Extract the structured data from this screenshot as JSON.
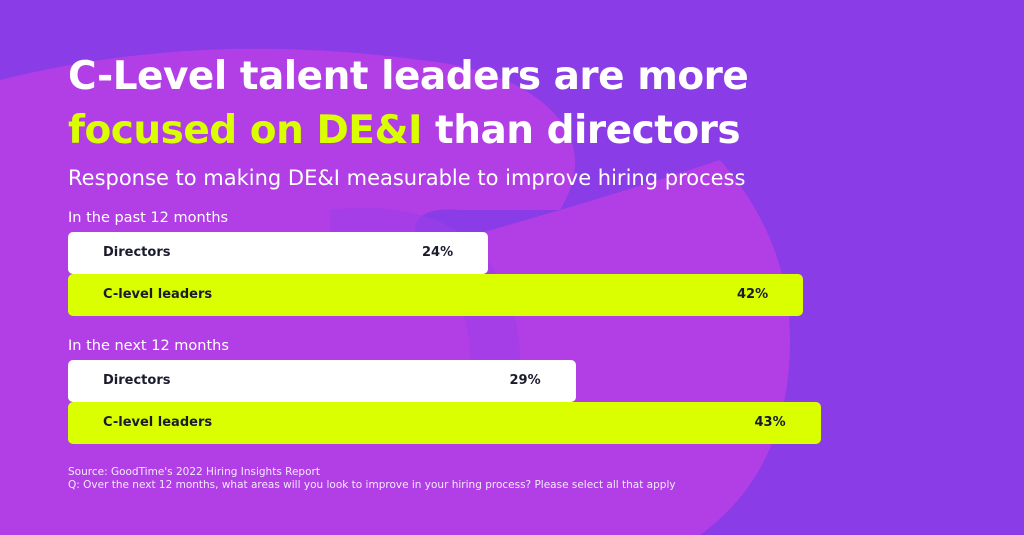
{
  "title": {
    "line1": "C-Level talent leaders are more",
    "highlight": "focused on DE&I",
    "line2_rest": " than directors"
  },
  "subtitle": "Response to making DE&I measurable to improve hiring process",
  "colors": {
    "background": "#8a3ce6",
    "shape": "#b23fe6",
    "directors_bar": "#ffffff",
    "clevel_bar": "#d9ff00",
    "highlight_text": "#d9ff00"
  },
  "chart_data": {
    "type": "bar",
    "orientation": "horizontal",
    "xlim": [
      0,
      50
    ],
    "groups": [
      {
        "label": "In the past 12 months",
        "bars": [
          {
            "name": "Directors",
            "value": 24,
            "value_label": "24%",
            "color": "#ffffff"
          },
          {
            "name": "C-level leaders",
            "value": 42,
            "value_label": "42%",
            "color": "#d9ff00"
          }
        ]
      },
      {
        "label": "In the next 12 months",
        "bars": [
          {
            "name": "Directors",
            "value": 29,
            "value_label": "29%",
            "color": "#ffffff"
          },
          {
            "name": "C-level leaders",
            "value": 43,
            "value_label": "43%",
            "color": "#d9ff00"
          }
        ]
      }
    ]
  },
  "footer": {
    "source": "Source: GoodTime's 2022 Hiring Insights Report",
    "question": "Q: Over the next 12 months, what areas will you look to improve in your hiring process? Please select all that apply"
  }
}
